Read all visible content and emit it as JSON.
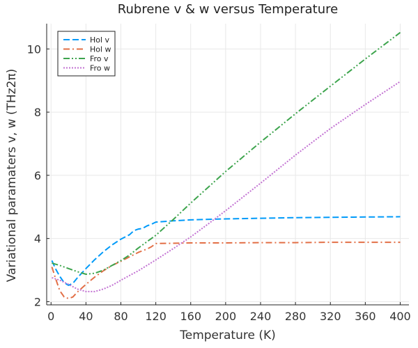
{
  "chart_data": {
    "type": "line",
    "title": "Rubrene v & w versus Temperature",
    "xlabel": "Temperature (K)",
    "ylabel": "Variational paramaters v, w (THz2π)",
    "xlim": [
      -5,
      410
    ],
    "ylim": [
      1.9,
      10.8
    ],
    "xticks": [
      0,
      40,
      80,
      120,
      160,
      200,
      240,
      280,
      320,
      360,
      400
    ],
    "yticks": [
      2,
      4,
      6,
      8,
      10
    ],
    "grid": true,
    "legend_position": "top-left",
    "series": [
      {
        "name": "Hol v",
        "color": "#009af9",
        "dash": "dash",
        "points": [
          [
            1,
            3.3
          ],
          [
            5,
            3.05
          ],
          [
            10,
            2.8
          ],
          [
            15,
            2.6
          ],
          [
            20,
            2.52
          ],
          [
            25,
            2.58
          ],
          [
            30,
            2.75
          ],
          [
            40,
            3.05
          ],
          [
            50,
            3.33
          ],
          [
            60,
            3.58
          ],
          [
            70,
            3.8
          ],
          [
            80,
            3.98
          ],
          [
            90,
            4.12
          ],
          [
            95,
            4.25
          ],
          [
            100,
            4.3
          ],
          [
            105,
            4.32
          ],
          [
            110,
            4.4
          ],
          [
            115,
            4.45
          ],
          [
            120,
            4.52
          ],
          [
            140,
            4.56
          ],
          [
            160,
            4.59
          ],
          [
            200,
            4.62
          ],
          [
            240,
            4.64
          ],
          [
            280,
            4.66
          ],
          [
            320,
            4.67
          ],
          [
            360,
            4.68
          ],
          [
            400,
            4.69
          ]
        ]
      },
      {
        "name": "Hol w",
        "color": "#e26f46",
        "dash": "dashdot",
        "points": [
          [
            1,
            3.1
          ],
          [
            5,
            2.75
          ],
          [
            10,
            2.35
          ],
          [
            15,
            2.15
          ],
          [
            20,
            2.1
          ],
          [
            25,
            2.15
          ],
          [
            30,
            2.3
          ],
          [
            40,
            2.55
          ],
          [
            50,
            2.78
          ],
          [
            60,
            2.98
          ],
          [
            70,
            3.15
          ],
          [
            80,
            3.28
          ],
          [
            90,
            3.42
          ],
          [
            100,
            3.56
          ],
          [
            110,
            3.67
          ],
          [
            115,
            3.74
          ],
          [
            120,
            3.84
          ],
          [
            140,
            3.85
          ],
          [
            160,
            3.86
          ],
          [
            200,
            3.86
          ],
          [
            240,
            3.87
          ],
          [
            280,
            3.87
          ],
          [
            320,
            3.88
          ],
          [
            360,
            3.88
          ],
          [
            400,
            3.88
          ]
        ]
      },
      {
        "name": "Fro v",
        "color": "#3da44d",
        "dash": "dashdotdot",
        "points": [
          [
            1,
            3.22
          ],
          [
            10,
            3.15
          ],
          [
            20,
            3.05
          ],
          [
            30,
            2.95
          ],
          [
            40,
            2.87
          ],
          [
            50,
            2.9
          ],
          [
            60,
            3.0
          ],
          [
            70,
            3.15
          ],
          [
            80,
            3.3
          ],
          [
            90,
            3.48
          ],
          [
            100,
            3.7
          ],
          [
            120,
            4.1
          ],
          [
            140,
            4.6
          ],
          [
            160,
            5.12
          ],
          [
            180,
            5.62
          ],
          [
            200,
            6.12
          ],
          [
            240,
            7.05
          ],
          [
            280,
            7.95
          ],
          [
            320,
            8.82
          ],
          [
            360,
            9.68
          ],
          [
            400,
            10.52
          ]
        ]
      },
      {
        "name": "Fro w",
        "color": "#c271d2",
        "dash": "dot",
        "points": [
          [
            1,
            2.76
          ],
          [
            10,
            2.68
          ],
          [
            20,
            2.55
          ],
          [
            30,
            2.4
          ],
          [
            40,
            2.32
          ],
          [
            50,
            2.32
          ],
          [
            60,
            2.4
          ],
          [
            70,
            2.52
          ],
          [
            80,
            2.68
          ],
          [
            100,
            2.98
          ],
          [
            120,
            3.32
          ],
          [
            140,
            3.68
          ],
          [
            160,
            4.05
          ],
          [
            180,
            4.46
          ],
          [
            200,
            4.88
          ],
          [
            240,
            5.75
          ],
          [
            280,
            6.64
          ],
          [
            320,
            7.48
          ],
          [
            360,
            8.24
          ],
          [
            400,
            8.97
          ]
        ]
      }
    ]
  }
}
